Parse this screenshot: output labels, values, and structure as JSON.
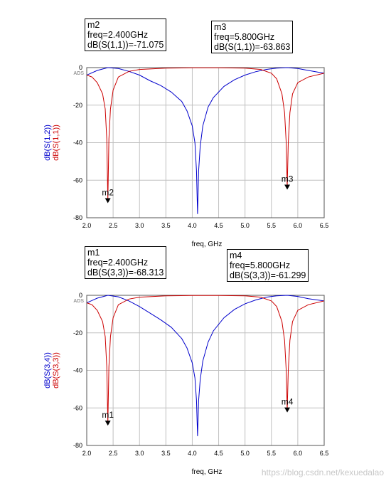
{
  "chart_data": [
    {
      "type": "line",
      "xlabel": "freq, GHz",
      "ylabel_series": [
        "dB(S(1,2))",
        "dB(S(1,1))"
      ],
      "tag": "ADS",
      "xlim": [
        2.0,
        6.5
      ],
      "ylim": [
        -80,
        0
      ],
      "xticks": [
        "2.0",
        "2.5",
        "3.0",
        "3.5",
        "4.0",
        "4.5",
        "5.0",
        "5.5",
        "6.0",
        "6.5"
      ],
      "yticks": [
        "0",
        "-20",
        "-40",
        "-60",
        "-80"
      ],
      "grid": true,
      "series": [
        {
          "name": "dB(S(1,2))",
          "color": "#0000cc",
          "x": [
            2.0,
            2.2,
            2.4,
            2.6,
            2.8,
            3.0,
            3.2,
            3.4,
            3.6,
            3.8,
            3.9,
            4.0,
            4.05,
            4.08,
            4.1,
            4.12,
            4.15,
            4.2,
            4.3,
            4.4,
            4.6,
            4.8,
            5.0,
            5.2,
            5.4,
            5.6,
            5.8,
            6.0,
            6.2,
            6.5
          ],
          "y": [
            -4,
            -1.5,
            0,
            -0.5,
            -2,
            -4,
            -7,
            -9.5,
            -13,
            -18,
            -23,
            -31,
            -40,
            -55,
            -78,
            -55,
            -42,
            -31,
            -21,
            -16,
            -10,
            -6.5,
            -4,
            -2.2,
            -1,
            -0.3,
            0,
            -0.5,
            -1.5,
            -3
          ]
        },
        {
          "name": "dB(S(1,1))",
          "color": "#cc0000",
          "x": [
            2.0,
            2.1,
            2.2,
            2.3,
            2.35,
            2.38,
            2.4,
            2.42,
            2.45,
            2.5,
            2.6,
            2.8,
            3.0,
            3.5,
            4.0,
            4.5,
            5.0,
            5.3,
            5.5,
            5.6,
            5.7,
            5.75,
            5.78,
            5.8,
            5.82,
            5.85,
            5.9,
            6.0,
            6.2,
            6.5
          ],
          "y": [
            -4,
            -5,
            -8,
            -14,
            -22,
            -38,
            -71.075,
            -38,
            -22,
            -12,
            -5,
            -2,
            -1,
            -0.3,
            -0.1,
            -0.1,
            -0.3,
            -1,
            -3,
            -6,
            -14,
            -24,
            -40,
            -63.863,
            -40,
            -24,
            -14,
            -8,
            -5,
            -3
          ]
        }
      ],
      "markers": [
        {
          "id": "m2",
          "x": 2.4,
          "y": -71.075,
          "series": "dB(S(1,1))",
          "lines": [
            "m2",
            "freq=2.400GHz",
            "dB(S(1,1))=-71.075"
          ]
        },
        {
          "id": "m3",
          "x": 5.8,
          "y": -63.863,
          "series": "dB(S(1,1))",
          "lines": [
            "m3",
            "freq=5.800GHz",
            "dB(S(1,1))=-63.863"
          ]
        }
      ]
    },
    {
      "type": "line",
      "xlabel": "freq, GHz",
      "ylabel_series": [
        "dB(S(3,4))",
        "dB(S(3,3))"
      ],
      "tag": "ADS",
      "xlim": [
        2.0,
        6.5
      ],
      "ylim": [
        -80,
        0
      ],
      "xticks": [
        "2.0",
        "2.5",
        "3.0",
        "3.5",
        "4.0",
        "4.5",
        "5.0",
        "5.5",
        "6.0",
        "6.5"
      ],
      "yticks": [
        "0",
        "-20",
        "-40",
        "-60",
        "-80"
      ],
      "grid": true,
      "series": [
        {
          "name": "dB(S(3,4))",
          "color": "#0000cc",
          "x": [
            2.0,
            2.2,
            2.4,
            2.6,
            2.8,
            3.0,
            3.2,
            3.4,
            3.6,
            3.8,
            3.9,
            4.0,
            4.05,
            4.08,
            4.1,
            4.12,
            4.15,
            4.2,
            4.3,
            4.4,
            4.6,
            4.8,
            5.0,
            5.2,
            5.4,
            5.6,
            5.8,
            6.0,
            6.2,
            6.5
          ],
          "y": [
            -4,
            -1.5,
            0,
            -0.8,
            -3,
            -6,
            -9.5,
            -13,
            -17,
            -23,
            -28,
            -36,
            -44,
            -56,
            -75,
            -56,
            -45,
            -35,
            -25,
            -19,
            -12,
            -7.5,
            -4.5,
            -2.5,
            -1,
            -0.3,
            0,
            -0.6,
            -1.8,
            -3
          ]
        },
        {
          "name": "dB(S(3,3))",
          "color": "#cc0000",
          "x": [
            2.0,
            2.1,
            2.2,
            2.3,
            2.35,
            2.38,
            2.4,
            2.42,
            2.45,
            2.5,
            2.6,
            2.8,
            3.0,
            3.5,
            4.0,
            4.5,
            5.0,
            5.3,
            5.5,
            5.6,
            5.7,
            5.75,
            5.78,
            5.8,
            5.82,
            5.85,
            5.9,
            6.0,
            6.2,
            6.5
          ],
          "y": [
            -4,
            -5,
            -8,
            -14,
            -22,
            -38,
            -68.313,
            -38,
            -22,
            -12,
            -5,
            -2,
            -1,
            -0.3,
            -0.1,
            -0.1,
            -0.3,
            -1,
            -3,
            -6,
            -14,
            -24,
            -40,
            -61.299,
            -40,
            -24,
            -14,
            -8,
            -5,
            -3
          ]
        }
      ],
      "markers": [
        {
          "id": "m1",
          "x": 2.4,
          "y": -68.313,
          "series": "dB(S(3,3))",
          "lines": [
            "m1",
            "freq=2.400GHz",
            "dB(S(3,3))=-68.313"
          ]
        },
        {
          "id": "m4",
          "x": 5.8,
          "y": -61.299,
          "series": "dB(S(3,3))",
          "lines": [
            "m4",
            "freq=5.800GHz",
            "dB(S(3,3))=-61.299"
          ]
        }
      ]
    }
  ],
  "watermark": "https://blog.csdn.net/kexuedalao"
}
